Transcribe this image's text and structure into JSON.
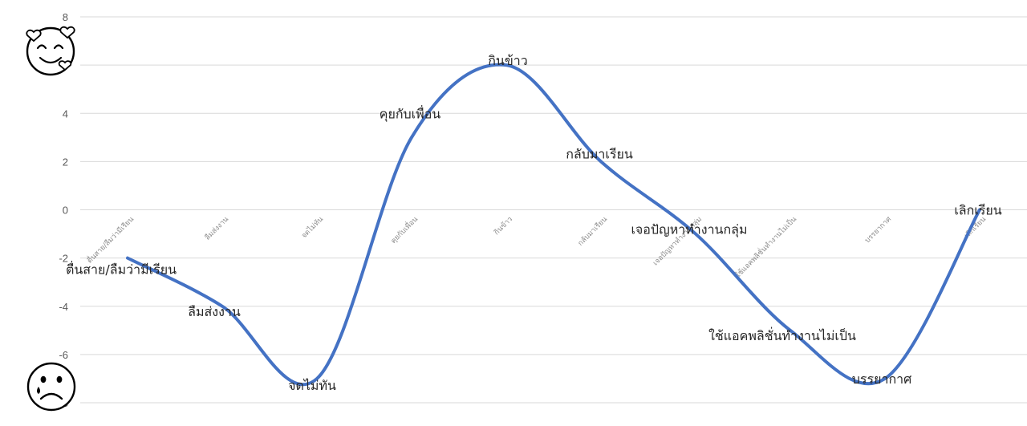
{
  "chart_data": {
    "type": "line",
    "smooth": true,
    "categories": [
      "ตื่นสาย/ลืมว่ามีเรียน",
      "ลืมส่งงาน",
      "จดไม่ทัน",
      "คุยกับเพื่อน",
      "กินข้าว",
      "กลับมาเรียน",
      "เจอปัญหาทำงานกลุ่ม",
      "ใช้แอคพลิชั่นทำงานไม่เป็น",
      "บรรยากาศ",
      "เลิกเรียน"
    ],
    "series": [
      {
        "values": [
          -2,
          -4,
          -7,
          3,
          6,
          2,
          -1,
          -5,
          -7,
          0
        ]
      }
    ],
    "data_labels": [
      "ตื่นสาย/ลืมว่ามีเรียน",
      "ลืมส่งงาน",
      "จดไม่ทัน",
      "คุยกับเพื่อน",
      "กินข้าว",
      "กลับมาเรียน",
      "เจอปัญหาทำงานกลุ่ม",
      "ใช้แอคพลิชั่นทำงานไม่เป็น",
      "บรรยากาศ",
      "เลิกเรียน"
    ],
    "yticks": [
      "8",
      "6",
      "4",
      "2",
      "0",
      "-2",
      "-4",
      "-6",
      "-8"
    ],
    "ylim": [
      -8,
      8
    ],
    "grid": true,
    "line_color": "#4472c4",
    "title": "",
    "xlabel": "",
    "ylabel": ""
  },
  "icons": {
    "top": "smiling-face-with-hearts-icon",
    "bottom": "crying-face-icon"
  }
}
